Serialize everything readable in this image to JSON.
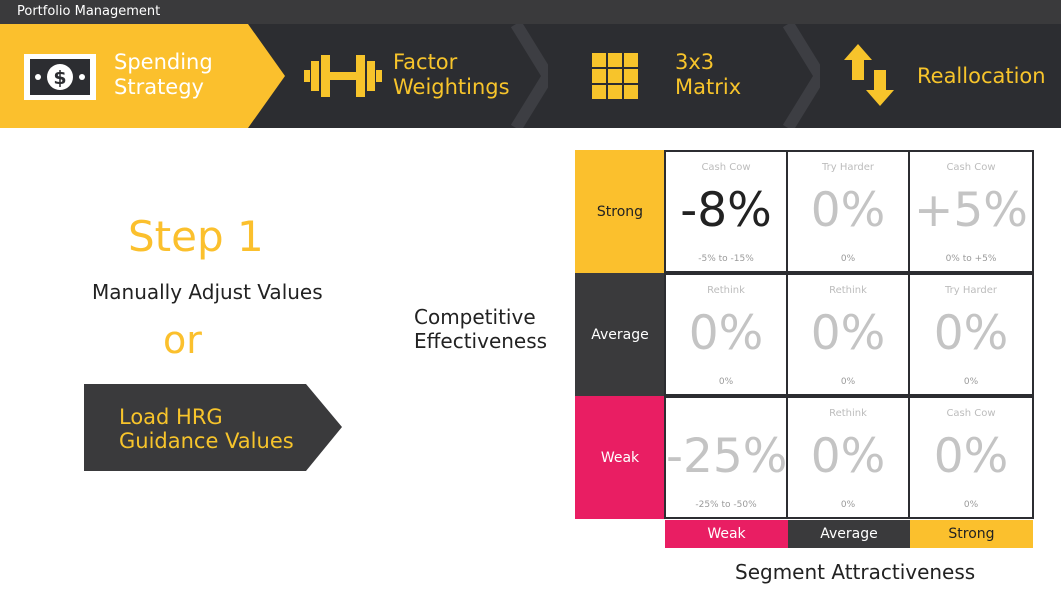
{
  "app": {
    "title": "Portfolio Management"
  },
  "nav": {
    "steps": [
      {
        "label_line1": "Spending",
        "label_line2": "Strategy",
        "icon": "dollar-bill-icon",
        "active": true
      },
      {
        "label_line1": "Factor",
        "label_line2": "Weightings",
        "icon": "dumbbell-icon",
        "active": false
      },
      {
        "label_line1": "3x3",
        "label_line2": "Matrix",
        "icon": "grid-icon",
        "active": false
      },
      {
        "label_line1": "Reallocation",
        "label_line2": "",
        "icon": "swap-arrows-icon",
        "active": false
      }
    ]
  },
  "left": {
    "step_title": "Step 1",
    "manual_text": "Manually Adjust Values",
    "or_text": "or",
    "load_button_line1": "Load HRG",
    "load_button_line2": "Guidance Values"
  },
  "matrix": {
    "y_axis_label_line1": "Competitive",
    "y_axis_label_line2": "Effectiveness",
    "x_axis_label": "Segment Attractiveness",
    "rows": [
      {
        "label": "Strong",
        "color": "#fbc02d"
      },
      {
        "label": "Average",
        "color": "#3a3a3c"
      },
      {
        "label": "Weak",
        "color": "#e91e63"
      }
    ],
    "cols": [
      {
        "label": "Weak",
        "color": "#e91e63"
      },
      {
        "label": "Average",
        "color": "#3a3a3c"
      },
      {
        "label": "Strong",
        "color": "#fbc02d"
      }
    ],
    "cells": [
      {
        "category": "Cash Cow",
        "value": "-8%",
        "range": "-5% to -15%",
        "active": true
      },
      {
        "category": "Try Harder",
        "value": "0%",
        "range": "0%",
        "active": false
      },
      {
        "category": "Cash Cow",
        "value": "+5%",
        "range": "0% to +5%",
        "active": false
      },
      {
        "category": "Rethink",
        "value": "0%",
        "range": "0%",
        "active": false
      },
      {
        "category": "Rethink",
        "value": "0%",
        "range": "0%",
        "active": false
      },
      {
        "category": "Try Harder",
        "value": "0%",
        "range": "0%",
        "active": false
      },
      {
        "category": "",
        "value": "-25%",
        "range": "-25% to -50%",
        "active": false
      },
      {
        "category": "Rethink",
        "value": "0%",
        "range": "0%",
        "active": false
      },
      {
        "category": "Cash Cow",
        "value": "0%",
        "range": "0%",
        "active": false
      }
    ]
  }
}
